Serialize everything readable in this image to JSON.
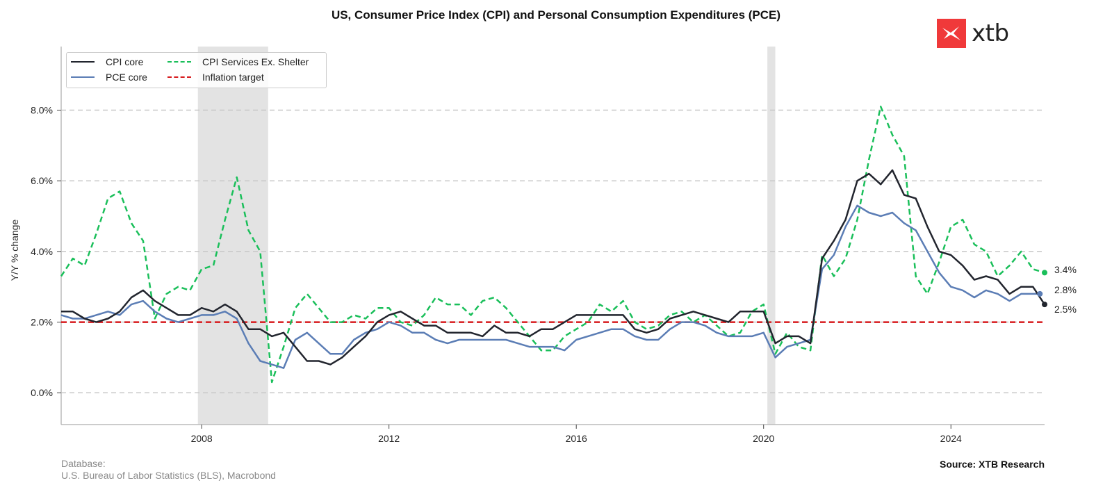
{
  "title": "US, Consumer Price Index (CPI) and Personal Consumption Expenditures (PCE)",
  "logo": {
    "text": "xtb",
    "icon": "xtb-x-logo-icon",
    "brand_color": "#f0393a"
  },
  "footer": {
    "database_label": "Database:",
    "database_value": "U.S. Bureau of Labor Statistics (BLS), Macrobond",
    "source": "Source: XTB Research"
  },
  "chart_data": {
    "type": "line",
    "title": "US, Consumer Price Index (CPI) and Personal Consumption Expenditures (PCE)",
    "xlabel": "",
    "ylabel": "Y/Y % change",
    "xlim": [
      2005.0,
      2026.0
    ],
    "ylim": [
      -0.9,
      9.8
    ],
    "x_ticks": [
      2008,
      2012,
      2016,
      2020,
      2024
    ],
    "x_tick_labels": [
      "2008",
      "2012",
      "2016",
      "2020",
      "2024"
    ],
    "y_ticks": [
      0,
      2,
      4,
      6,
      8
    ],
    "y_tick_labels": [
      "0.0%",
      "2.0%",
      "4.0%",
      "6.0%",
      "8.0%"
    ],
    "grid": "horizontal dashed",
    "legend_position": "top-left",
    "recessions": [
      [
        2007.92,
        2009.42
      ],
      [
        2020.08,
        2020.25
      ]
    ],
    "end_labels": [
      {
        "series": "CPI Services Ex. Shelter",
        "label": "3.4%",
        "value": 3.4
      },
      {
        "series": "PCE core",
        "label": "2.8%",
        "value": 2.8
      },
      {
        "series": "CPI core",
        "label": "2.5%",
        "value": 2.5
      }
    ],
    "series": [
      {
        "name": "CPI core",
        "color": "#22252e",
        "dash": "solid",
        "x": [
          2005.0,
          2005.25,
          2005.5,
          2005.75,
          2006.0,
          2006.25,
          2006.5,
          2006.75,
          2007.0,
          2007.25,
          2007.5,
          2007.75,
          2008.0,
          2008.25,
          2008.5,
          2008.75,
          2009.0,
          2009.25,
          2009.5,
          2009.75,
          2010.0,
          2010.25,
          2010.5,
          2010.75,
          2011.0,
          2011.25,
          2011.5,
          2011.75,
          2012.0,
          2012.25,
          2012.5,
          2012.75,
          2013.0,
          2013.25,
          2013.5,
          2013.75,
          2014.0,
          2014.25,
          2014.5,
          2014.75,
          2015.0,
          2015.25,
          2015.5,
          2015.75,
          2016.0,
          2016.25,
          2016.5,
          2016.75,
          2017.0,
          2017.25,
          2017.5,
          2017.75,
          2018.0,
          2018.25,
          2018.5,
          2018.75,
          2019.0,
          2019.25,
          2019.5,
          2019.75,
          2020.0,
          2020.25,
          2020.5,
          2020.75,
          2021.0,
          2021.25,
          2021.5,
          2021.75,
          2022.0,
          2022.25,
          2022.5,
          2022.75,
          2023.0,
          2023.25,
          2023.5,
          2023.75,
          2024.0,
          2024.25,
          2024.5,
          2024.75,
          2025.0,
          2025.25,
          2025.5,
          2025.75,
          2026.0
        ],
        "values": [
          2.3,
          2.3,
          2.1,
          2.0,
          2.1,
          2.3,
          2.7,
          2.9,
          2.6,
          2.4,
          2.2,
          2.2,
          2.4,
          2.3,
          2.5,
          2.3,
          1.8,
          1.8,
          1.6,
          1.7,
          1.3,
          0.9,
          0.9,
          0.8,
          1.0,
          1.3,
          1.6,
          2.0,
          2.2,
          2.3,
          2.1,
          1.9,
          1.9,
          1.7,
          1.7,
          1.7,
          1.6,
          1.9,
          1.7,
          1.7,
          1.6,
          1.8,
          1.8,
          2.0,
          2.2,
          2.2,
          2.2,
          2.2,
          2.2,
          1.8,
          1.7,
          1.8,
          2.1,
          2.2,
          2.3,
          2.2,
          2.1,
          2.0,
          2.3,
          2.3,
          2.3,
          1.4,
          1.6,
          1.6,
          1.4,
          3.8,
          4.3,
          4.9,
          6.0,
          6.2,
          5.9,
          6.3,
          5.6,
          5.5,
          4.7,
          4.0,
          3.9,
          3.6,
          3.2,
          3.3,
          3.2,
          2.8,
          3.0,
          3.0,
          2.5
        ]
      },
      {
        "name": "PCE core",
        "color": "#5b7db5",
        "dash": "solid",
        "x": [
          2005.0,
          2005.25,
          2005.5,
          2005.75,
          2006.0,
          2006.25,
          2006.5,
          2006.75,
          2007.0,
          2007.25,
          2007.5,
          2007.75,
          2008.0,
          2008.25,
          2008.5,
          2008.75,
          2009.0,
          2009.25,
          2009.5,
          2009.75,
          2010.0,
          2010.25,
          2010.5,
          2010.75,
          2011.0,
          2011.25,
          2011.5,
          2011.75,
          2012.0,
          2012.25,
          2012.5,
          2012.75,
          2013.0,
          2013.25,
          2013.5,
          2013.75,
          2014.0,
          2014.25,
          2014.5,
          2014.75,
          2015.0,
          2015.25,
          2015.5,
          2015.75,
          2016.0,
          2016.25,
          2016.5,
          2016.75,
          2017.0,
          2017.25,
          2017.5,
          2017.75,
          2018.0,
          2018.25,
          2018.5,
          2018.75,
          2019.0,
          2019.25,
          2019.5,
          2019.75,
          2020.0,
          2020.25,
          2020.5,
          2020.75,
          2021.0,
          2021.25,
          2021.5,
          2021.75,
          2022.0,
          2022.25,
          2022.5,
          2022.75,
          2023.0,
          2023.25,
          2023.5,
          2023.75,
          2024.0,
          2024.25,
          2024.5,
          2024.75,
          2025.0,
          2025.25,
          2025.5,
          2025.75,
          2025.9
        ],
        "values": [
          2.2,
          2.1,
          2.1,
          2.2,
          2.3,
          2.2,
          2.5,
          2.6,
          2.3,
          2.1,
          2.0,
          2.1,
          2.2,
          2.2,
          2.3,
          2.1,
          1.4,
          0.9,
          0.8,
          0.7,
          1.5,
          1.7,
          1.4,
          1.1,
          1.1,
          1.5,
          1.7,
          1.8,
          2.0,
          1.9,
          1.7,
          1.7,
          1.5,
          1.4,
          1.5,
          1.5,
          1.5,
          1.5,
          1.5,
          1.4,
          1.3,
          1.3,
          1.3,
          1.2,
          1.5,
          1.6,
          1.7,
          1.8,
          1.8,
          1.6,
          1.5,
          1.5,
          1.8,
          2.0,
          2.0,
          1.9,
          1.7,
          1.6,
          1.6,
          1.6,
          1.7,
          1.0,
          1.3,
          1.4,
          1.5,
          3.5,
          3.9,
          4.7,
          5.3,
          5.1,
          5.0,
          5.1,
          4.8,
          4.6,
          4.0,
          3.4,
          3.0,
          2.9,
          2.7,
          2.9,
          2.8,
          2.6,
          2.8,
          2.8,
          2.8
        ]
      },
      {
        "name": "CPI Services Ex. Shelter",
        "color": "#1abf5a",
        "dash": "dashed",
        "x": [
          2005.0,
          2005.25,
          2005.5,
          2005.75,
          2006.0,
          2006.25,
          2006.5,
          2006.75,
          2007.0,
          2007.25,
          2007.5,
          2007.75,
          2008.0,
          2008.25,
          2008.5,
          2008.75,
          2009.0,
          2009.25,
          2009.5,
          2009.75,
          2010.0,
          2010.25,
          2010.5,
          2010.75,
          2011.0,
          2011.25,
          2011.5,
          2011.75,
          2012.0,
          2012.25,
          2012.5,
          2012.75,
          2013.0,
          2013.25,
          2013.5,
          2013.75,
          2014.0,
          2014.25,
          2014.5,
          2014.75,
          2015.0,
          2015.25,
          2015.5,
          2015.75,
          2016.0,
          2016.25,
          2016.5,
          2016.75,
          2017.0,
          2017.25,
          2017.5,
          2017.75,
          2018.0,
          2018.25,
          2018.5,
          2018.75,
          2019.0,
          2019.25,
          2019.5,
          2019.75,
          2020.0,
          2020.25,
          2020.5,
          2020.75,
          2021.0,
          2021.25,
          2021.5,
          2021.75,
          2022.0,
          2022.25,
          2022.5,
          2022.75,
          2023.0,
          2023.25,
          2023.5,
          2023.75,
          2024.0,
          2024.25,
          2024.5,
          2024.75,
          2025.0,
          2025.25,
          2025.5,
          2025.75,
          2026.0
        ],
        "values": [
          3.3,
          3.8,
          3.6,
          4.5,
          5.5,
          5.7,
          4.8,
          4.3,
          2.1,
          2.8,
          3.0,
          2.9,
          3.5,
          3.6,
          4.9,
          6.1,
          4.6,
          4.0,
          0.3,
          1.3,
          2.4,
          2.8,
          2.4,
          2.0,
          2.0,
          2.2,
          2.1,
          2.4,
          2.4,
          2.0,
          1.9,
          2.2,
          2.7,
          2.5,
          2.5,
          2.2,
          2.6,
          2.7,
          2.4,
          2.0,
          1.6,
          1.2,
          1.2,
          1.6,
          1.8,
          2.0,
          2.5,
          2.3,
          2.6,
          2.0,
          1.8,
          1.9,
          2.2,
          2.3,
          2.0,
          2.2,
          1.9,
          1.6,
          1.7,
          2.3,
          2.5,
          1.1,
          1.7,
          1.3,
          1.2,
          3.9,
          3.3,
          3.8,
          4.9,
          6.6,
          8.1,
          7.3,
          6.7,
          3.3,
          2.8,
          3.7,
          4.7,
          4.9,
          4.2,
          4.0,
          3.3,
          3.6,
          4.0,
          3.5,
          3.4
        ]
      },
      {
        "name": "Inflation target",
        "color": "#d7191c",
        "dash": "dashed",
        "x": [
          2005.0,
          2026.0
        ],
        "values": [
          2.0,
          2.0
        ]
      }
    ]
  }
}
